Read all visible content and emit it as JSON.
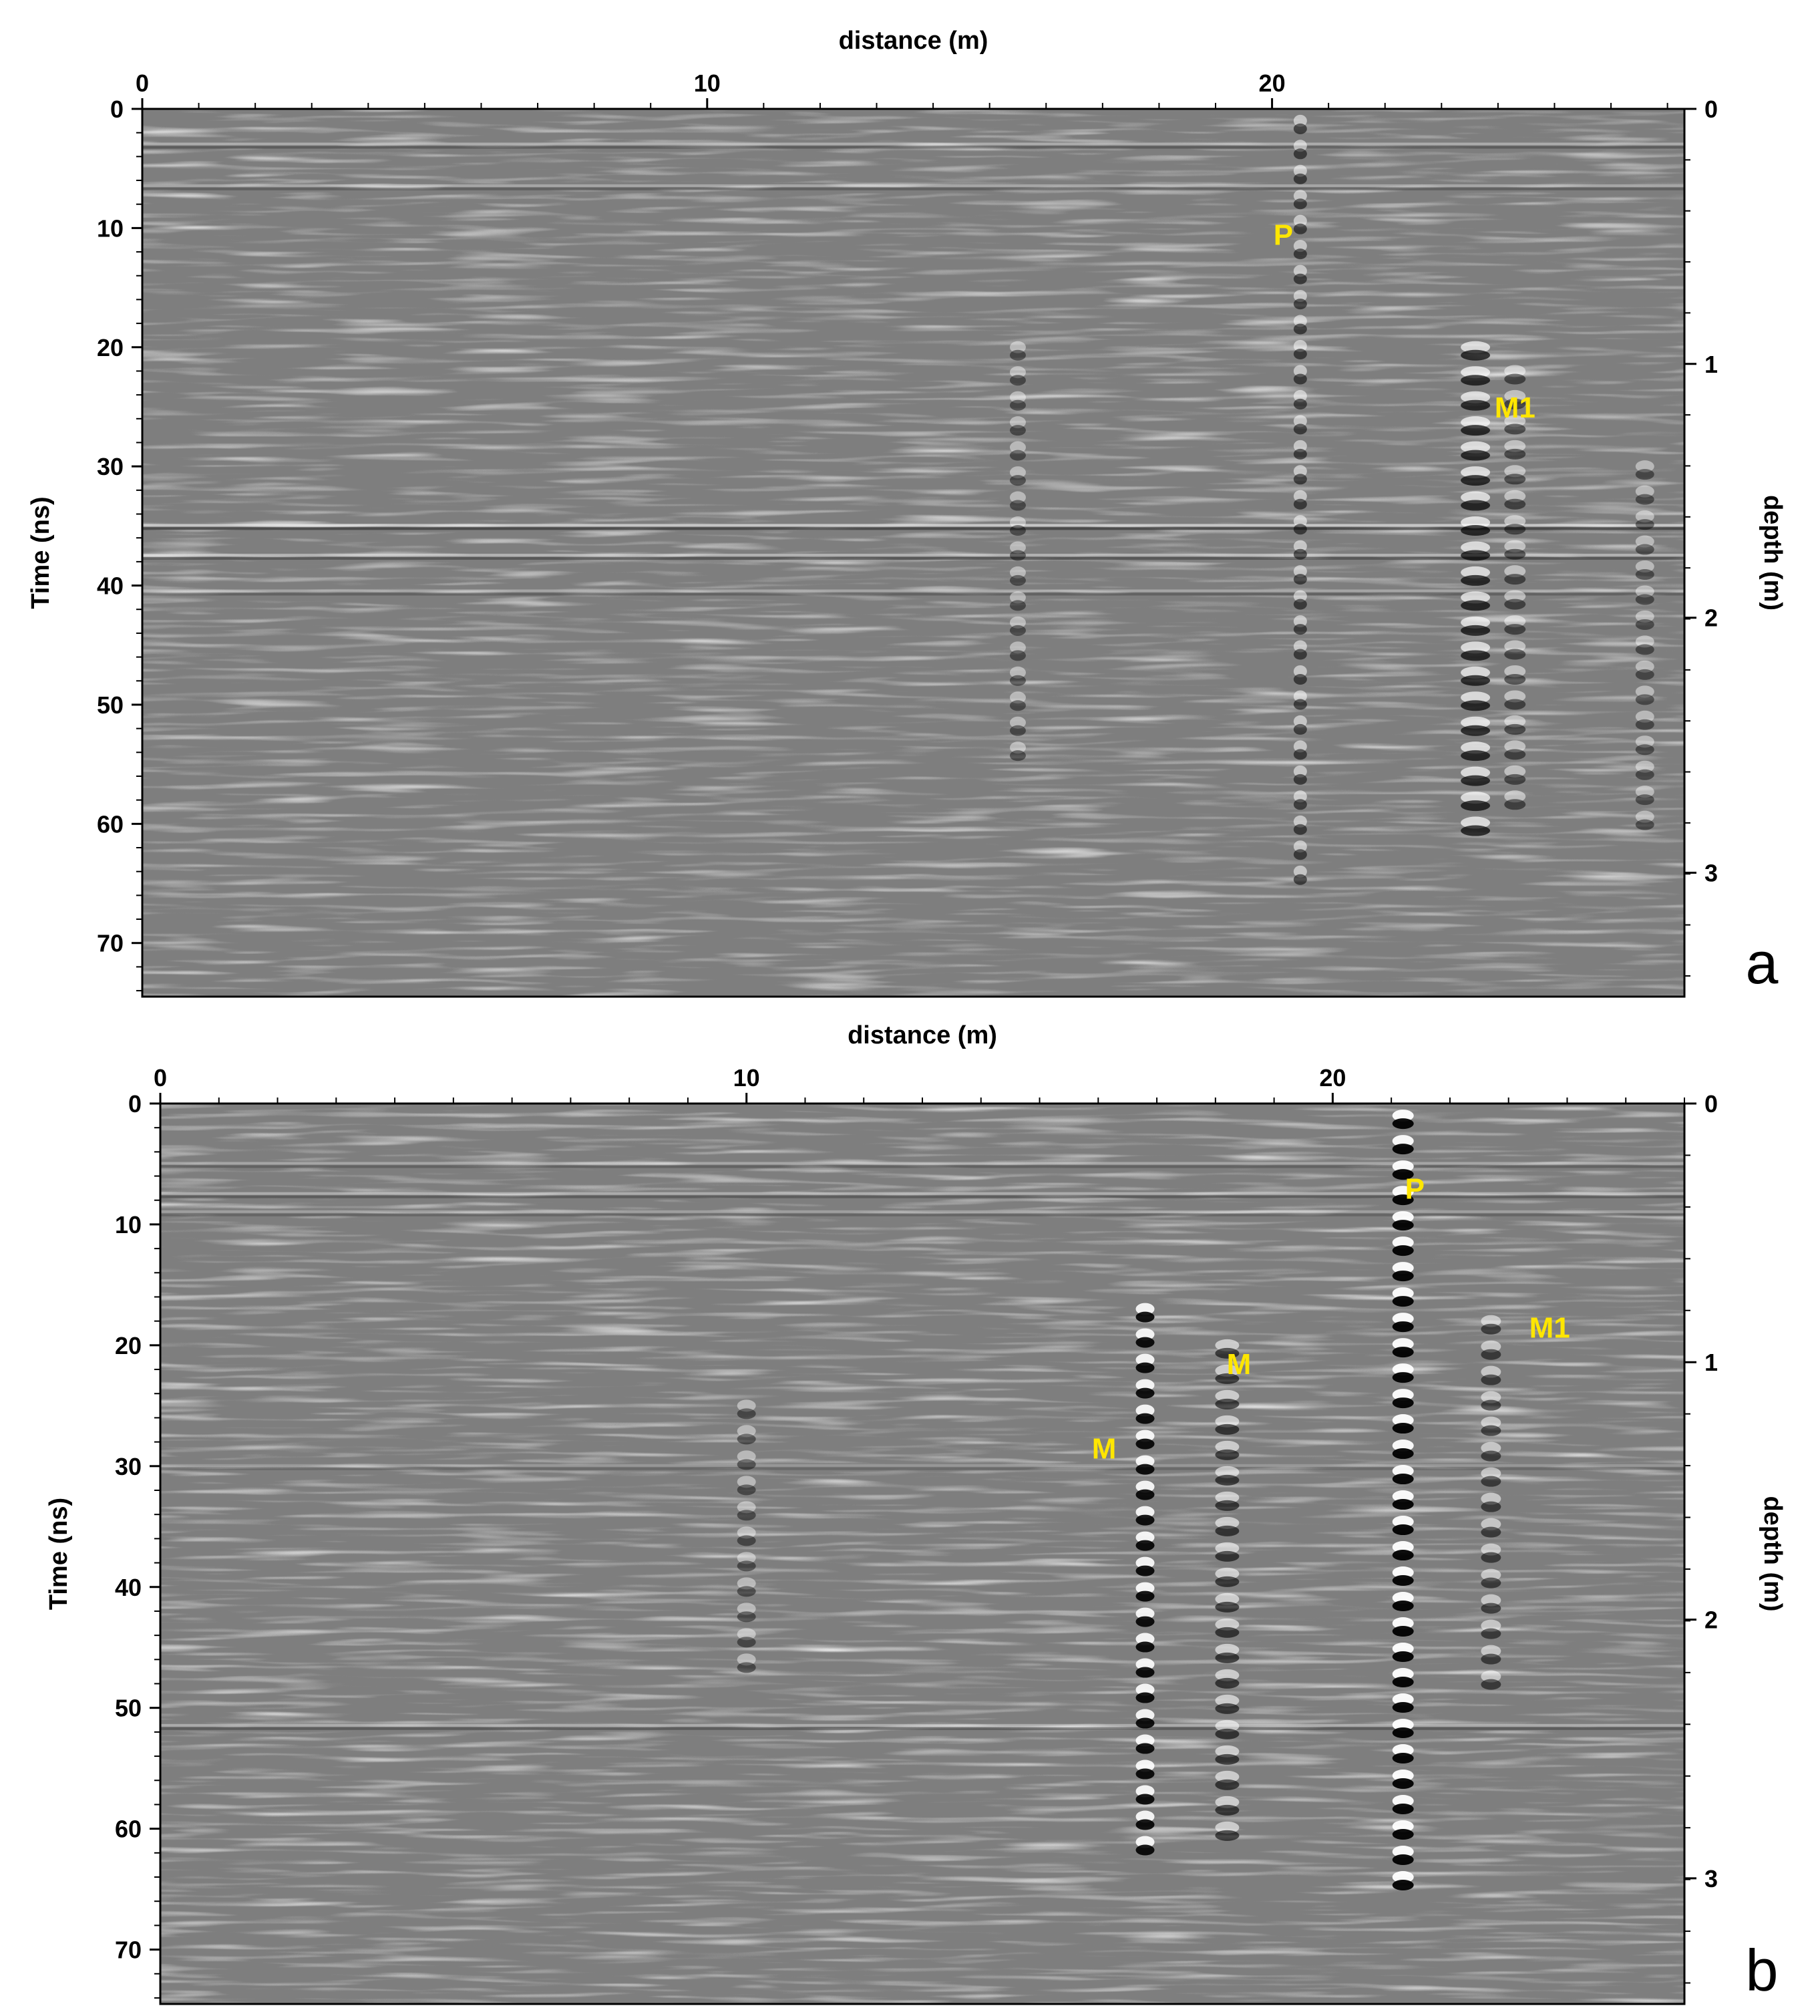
{
  "chart_data": [
    {
      "type": "heatmap",
      "panel_label": "a",
      "xlabel": "distance (m)",
      "ylabel": "Time (ns)",
      "y2label": "depth (m)",
      "xlim": [
        0,
        27.3
      ],
      "ylim": [
        0,
        74.5
      ],
      "x_ticks": [
        0,
        10,
        20
      ],
      "y_ticks": [
        0,
        10,
        20,
        30,
        40,
        50,
        60,
        70
      ],
      "depth_ticks": [
        {
          "label": "0",
          "time_ns": 0
        },
        {
          "label": "1",
          "time_ns": 21.4
        },
        {
          "label": "2",
          "time_ns": 42.7
        },
        {
          "label": "3",
          "time_ns": 64.1
        }
      ],
      "colormap": "grayscale",
      "annotations": [
        {
          "text": "P",
          "x": 20.2,
          "y": 10.5
        },
        {
          "text": "M1",
          "x": 24.3,
          "y": 25
        }
      ]
    },
    {
      "type": "heatmap",
      "panel_label": "b",
      "xlabel": "distance (m)",
      "ylabel": "Time (ns)",
      "y2label": "depth (m)",
      "xlim": [
        0,
        26
      ],
      "ylim": [
        0,
        74.5
      ],
      "x_ticks": [
        0,
        10,
        20
      ],
      "y_ticks": [
        0,
        10,
        20,
        30,
        40,
        50,
        60,
        70
      ],
      "depth_ticks": [
        {
          "label": "0",
          "time_ns": 0
        },
        {
          "label": "1",
          "time_ns": 21.4
        },
        {
          "label": "2",
          "time_ns": 42.7
        },
        {
          "label": "3",
          "time_ns": 64.1
        }
      ],
      "colormap": "grayscale",
      "annotations": [
        {
          "text": "P",
          "x": 21.4,
          "y": 7
        },
        {
          "text": "M",
          "x": 18.4,
          "y": 21.5
        },
        {
          "text": "M",
          "x": 16.1,
          "y": 28.5
        },
        {
          "text": "M1",
          "x": 23.7,
          "y": 18.5
        }
      ]
    }
  ]
}
